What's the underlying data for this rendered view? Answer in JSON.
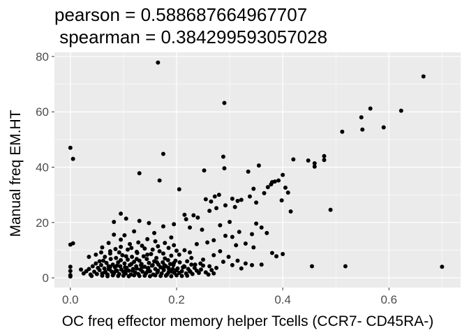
{
  "chart_data": {
    "type": "scatter",
    "title": "pearson = 0.588687664967707",
    "subtitle": " spearman = 0.384299593057028",
    "xlabel": "OC freq effector memory helper Tcells (CCR7- CD45RA-)",
    "ylabel": "Manual freq EM.HT",
    "xlim": [
      -0.03,
      0.735
    ],
    "ylim": [
      -3.5,
      81.5
    ],
    "xticks": [
      0.0,
      0.2,
      0.4,
      0.6
    ],
    "xtick_labels": [
      "0.0",
      "0.2",
      "0.4",
      "0.6"
    ],
    "yticks": [
      0,
      20,
      40,
      60,
      80
    ],
    "ytick_labels": [
      "0",
      "20",
      "40",
      "60",
      "80"
    ],
    "grid": true,
    "legend": "none",
    "colors": {
      "panel": "#ebebeb",
      "grid": "#ffffff",
      "point": "#000000",
      "tick_text": "#4d4d4d"
    },
    "points": [
      [
        0.0,
        47.0
      ],
      [
        0.005,
        43.0
      ],
      [
        0.0,
        12.0
      ],
      [
        0.005,
        12.5
      ],
      [
        0.0,
        4.0
      ],
      [
        0.0,
        2.5
      ],
      [
        0.0,
        1.0
      ],
      [
        0.0,
        0.5
      ],
      [
        0.165,
        77.8
      ],
      [
        0.29,
        63.2
      ],
      [
        0.665,
        72.8
      ],
      [
        0.623,
        60.4
      ],
      [
        0.565,
        61.2
      ],
      [
        0.548,
        58.0
      ],
      [
        0.55,
        53.6
      ],
      [
        0.512,
        52.8
      ],
      [
        0.59,
        54.4
      ],
      [
        0.7,
        4.0
      ],
      [
        0.518,
        4.2
      ],
      [
        0.455,
        4.2
      ],
      [
        0.49,
        24.6
      ],
      [
        0.415,
        24.0
      ],
      [
        0.175,
        44.8
      ],
      [
        0.13,
        37.8
      ],
      [
        0.168,
        35.2
      ],
      [
        0.205,
        32.0
      ],
      [
        0.288,
        43.8
      ],
      [
        0.29,
        39.6
      ],
      [
        0.252,
        38.8
      ],
      [
        0.335,
        38.4
      ],
      [
        0.355,
        40.6
      ],
      [
        0.42,
        42.8
      ],
      [
        0.448,
        42.4
      ],
      [
        0.46,
        41.4
      ],
      [
        0.46,
        40.2
      ],
      [
        0.478,
        44.0
      ],
      [
        0.478,
        42.6
      ],
      [
        0.4,
        37.2
      ],
      [
        0.392,
        35.2
      ],
      [
        0.385,
        34.8
      ],
      [
        0.38,
        34.6
      ],
      [
        0.378,
        33.8
      ],
      [
        0.372,
        32.8
      ],
      [
        0.405,
        32.6
      ],
      [
        0.41,
        30.8
      ],
      [
        0.398,
        28.0
      ],
      [
        0.365,
        30.6
      ],
      [
        0.345,
        32.2
      ],
      [
        0.338,
        29.4
      ],
      [
        0.322,
        28.2
      ],
      [
        0.315,
        27.8
      ],
      [
        0.305,
        28.6
      ],
      [
        0.35,
        27.2
      ],
      [
        0.31,
        25.6
      ],
      [
        0.28,
        30.0
      ],
      [
        0.272,
        29.4
      ],
      [
        0.265,
        27.6
      ],
      [
        0.255,
        28.4
      ],
      [
        0.292,
        26.2
      ],
      [
        0.275,
        25.2
      ],
      [
        0.262,
        24.2
      ],
      [
        0.24,
        21.8
      ],
      [
        0.232,
        22.6
      ],
      [
        0.215,
        22.8
      ],
      [
        0.218,
        21.2
      ],
      [
        0.095,
        23.2
      ],
      [
        0.082,
        20.2
      ],
      [
        0.105,
        21.4
      ],
      [
        0.13,
        20.6
      ],
      [
        0.148,
        19.8
      ],
      [
        0.175,
        18.6
      ],
      [
        0.195,
        19.4
      ],
      [
        0.225,
        18.2
      ],
      [
        0.248,
        17.4
      ],
      [
        0.282,
        19.0
      ],
      [
        0.3,
        20.2
      ],
      [
        0.35,
        19.6
      ],
      [
        0.36,
        18.2
      ],
      [
        0.37,
        16.2
      ],
      [
        0.342,
        15.8
      ],
      [
        0.318,
        16.6
      ],
      [
        0.305,
        14.8
      ],
      [
        0.292,
        15.2
      ],
      [
        0.27,
        13.6
      ],
      [
        0.258,
        12.8
      ],
      [
        0.238,
        12.2
      ],
      [
        0.312,
        11.8
      ],
      [
        0.33,
        12.4
      ],
      [
        0.345,
        11.0
      ],
      [
        0.2,
        9.8
      ],
      [
        0.38,
        9.0
      ],
      [
        0.4,
        8.6
      ],
      [
        0.388,
        7.8
      ],
      [
        0.36,
        4.8
      ],
      [
        0.342,
        4.6
      ],
      [
        0.33,
        5.2
      ],
      [
        0.322,
        3.4
      ],
      [
        0.305,
        4.6
      ],
      [
        0.288,
        5.8
      ],
      [
        0.275,
        3.6
      ],
      [
        0.262,
        4.2
      ],
      [
        0.245,
        5.2
      ],
      [
        0.228,
        4.8
      ],
      [
        0.212,
        3.8
      ],
      [
        0.2,
        2.8
      ],
      [
        0.185,
        3.6
      ],
      [
        0.228,
        7.2
      ],
      [
        0.25,
        6.6
      ],
      [
        0.22,
        6.0
      ],
      [
        0.27,
        8.2
      ],
      [
        0.282,
        9.6
      ],
      [
        0.298,
        7.6
      ],
      [
        0.315,
        6.2
      ],
      [
        0.19,
        14.6
      ],
      [
        0.178,
        12.6
      ],
      [
        0.16,
        13.2
      ],
      [
        0.145,
        14.0
      ],
      [
        0.128,
        12.8
      ],
      [
        0.112,
        12.2
      ],
      [
        0.095,
        13.8
      ],
      [
        0.072,
        12.6
      ],
      [
        0.06,
        11.0
      ],
      [
        0.158,
        16.2
      ],
      [
        0.12,
        16.8
      ],
      [
        0.102,
        15.4
      ],
      [
        0.082,
        15.6
      ],
      [
        0.14,
        10.6
      ],
      [
        0.125,
        9.4
      ],
      [
        0.108,
        10.2
      ],
      [
        0.092,
        9.2
      ],
      [
        0.075,
        9.6
      ],
      [
        0.058,
        9.2
      ],
      [
        0.048,
        8.4
      ],
      [
        0.035,
        7.6
      ],
      [
        0.02,
        3.0
      ],
      [
        0.025,
        1.6
      ],
      [
        0.03,
        2.4
      ],
      [
        0.035,
        3.2
      ],
      [
        0.038,
        1.2
      ],
      [
        0.042,
        4.2
      ],
      [
        0.045,
        2.2
      ],
      [
        0.048,
        5.2
      ],
      [
        0.05,
        1.4
      ],
      [
        0.052,
        3.6
      ],
      [
        0.055,
        2.8
      ],
      [
        0.058,
        4.6
      ],
      [
        0.06,
        1.6
      ],
      [
        0.062,
        6.2
      ],
      [
        0.064,
        3.4
      ],
      [
        0.066,
        2.2
      ],
      [
        0.068,
        5.4
      ],
      [
        0.07,
        1.2
      ],
      [
        0.072,
        4.2
      ],
      [
        0.074,
        3.0
      ],
      [
        0.076,
        6.8
      ],
      [
        0.078,
        2.2
      ],
      [
        0.08,
        4.8
      ],
      [
        0.082,
        1.6
      ],
      [
        0.084,
        3.8
      ],
      [
        0.086,
        7.2
      ],
      [
        0.088,
        2.6
      ],
      [
        0.09,
        5.6
      ],
      [
        0.092,
        1.4
      ],
      [
        0.094,
        4.2
      ],
      [
        0.096,
        3.0
      ],
      [
        0.098,
        8.2
      ],
      [
        0.1,
        2.2
      ],
      [
        0.102,
        5.2
      ],
      [
        0.104,
        1.6
      ],
      [
        0.106,
        3.6
      ],
      [
        0.108,
        6.6
      ],
      [
        0.11,
        2.6
      ],
      [
        0.112,
        4.6
      ],
      [
        0.114,
        1.2
      ],
      [
        0.116,
        7.6
      ],
      [
        0.118,
        3.2
      ],
      [
        0.12,
        5.8
      ],
      [
        0.122,
        2.0
      ],
      [
        0.124,
        4.2
      ],
      [
        0.126,
        9.0
      ],
      [
        0.128,
        1.4
      ],
      [
        0.13,
        6.2
      ],
      [
        0.132,
        3.0
      ],
      [
        0.134,
        5.0
      ],
      [
        0.136,
        2.2
      ],
      [
        0.138,
        7.8
      ],
      [
        0.14,
        4.0
      ],
      [
        0.142,
        1.6
      ],
      [
        0.144,
        6.8
      ],
      [
        0.146,
        3.4
      ],
      [
        0.148,
        5.4
      ],
      [
        0.15,
        2.4
      ],
      [
        0.152,
        8.6
      ],
      [
        0.154,
        4.4
      ],
      [
        0.156,
        1.2
      ],
      [
        0.158,
        6.0
      ],
      [
        0.16,
        3.2
      ],
      [
        0.162,
        7.2
      ],
      [
        0.164,
        2.0
      ],
      [
        0.166,
        4.8
      ],
      [
        0.168,
        9.6
      ],
      [
        0.17,
        3.8
      ],
      [
        0.172,
        1.6
      ],
      [
        0.174,
        5.6
      ],
      [
        0.176,
        2.8
      ],
      [
        0.178,
        7.0
      ],
      [
        0.18,
        4.2
      ],
      [
        0.182,
        1.2
      ],
      [
        0.184,
        6.4
      ],
      [
        0.186,
        3.0
      ],
      [
        0.188,
        5.0
      ],
      [
        0.19,
        8.0
      ],
      [
        0.192,
        2.2
      ],
      [
        0.194,
        4.6
      ],
      [
        0.196,
        1.8
      ],
      [
        0.198,
        6.2
      ],
      [
        0.202,
        3.4
      ],
      [
        0.206,
        5.6
      ],
      [
        0.21,
        2.4
      ],
      [
        0.214,
        4.2
      ],
      [
        0.218,
        1.6
      ],
      [
        0.222,
        3.2
      ],
      [
        0.226,
        2.2
      ],
      [
        0.23,
        1.4
      ],
      [
        0.234,
        3.6
      ],
      [
        0.238,
        2.6
      ],
      [
        0.242,
        1.8
      ],
      [
        0.246,
        3.0
      ],
      [
        0.25,
        4.4
      ],
      [
        0.255,
        2.0
      ],
      [
        0.26,
        1.2
      ],
      [
        0.266,
        2.8
      ],
      [
        0.27,
        1.6
      ],
      [
        0.055,
        6.0
      ],
      [
        0.065,
        7.6
      ],
      [
        0.075,
        8.8
      ],
      [
        0.085,
        10.4
      ],
      [
        0.095,
        11.2
      ],
      [
        0.105,
        7.8
      ],
      [
        0.115,
        10.8
      ],
      [
        0.125,
        6.8
      ],
      [
        0.135,
        11.6
      ],
      [
        0.145,
        8.4
      ],
      [
        0.155,
        10.2
      ],
      [
        0.165,
        11.4
      ],
      [
        0.175,
        8.8
      ],
      [
        0.185,
        10.8
      ],
      [
        0.195,
        11.8
      ],
      [
        0.205,
        8.4
      ],
      [
        0.215,
        10.0
      ],
      [
        0.225,
        9.2
      ],
      [
        0.06,
        0.8
      ],
      [
        0.07,
        0.6
      ],
      [
        0.08,
        0.9
      ],
      [
        0.09,
        0.7
      ],
      [
        0.1,
        0.8
      ],
      [
        0.11,
        0.6
      ],
      [
        0.12,
        0.9
      ],
      [
        0.13,
        0.7
      ],
      [
        0.14,
        0.8
      ],
      [
        0.15,
        0.6
      ],
      [
        0.16,
        0.9
      ],
      [
        0.17,
        0.7
      ],
      [
        0.18,
        0.8
      ],
      [
        0.19,
        0.6
      ],
      [
        0.2,
        0.9
      ],
      [
        0.21,
        0.7
      ],
      [
        0.22,
        0.8
      ],
      [
        0.04,
        0.7
      ],
      [
        0.065,
        2.0
      ],
      [
        0.085,
        2.4
      ],
      [
        0.105,
        2.8
      ],
      [
        0.125,
        3.4
      ],
      [
        0.145,
        2.2
      ],
      [
        0.165,
        2.6
      ],
      [
        0.185,
        2.0
      ],
      [
        0.205,
        1.8
      ],
      [
        0.225,
        2.4
      ],
      [
        0.075,
        4.0
      ],
      [
        0.095,
        6.4
      ],
      [
        0.115,
        5.0
      ],
      [
        0.135,
        3.8
      ],
      [
        0.155,
        4.6
      ],
      [
        0.175,
        3.4
      ],
      [
        0.195,
        5.4
      ],
      [
        0.215,
        4.0
      ],
      [
        0.235,
        4.8
      ],
      [
        0.072,
        3.2
      ],
      [
        0.088,
        4.4
      ],
      [
        0.103,
        3.8
      ],
      [
        0.117,
        2.6
      ],
      [
        0.133,
        4.6
      ],
      [
        0.147,
        3.6
      ],
      [
        0.163,
        5.6
      ],
      [
        0.177,
        4.6
      ],
      [
        0.193,
        3.2
      ]
    ]
  }
}
